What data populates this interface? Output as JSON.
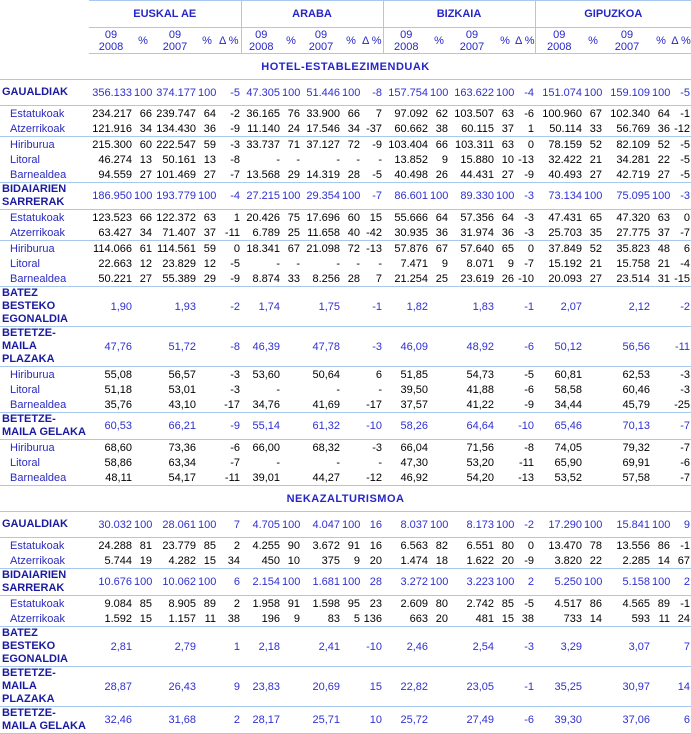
{
  "header": {
    "groups": [
      "EUSKAL AE",
      "ARABA",
      "BIZKAIA",
      "GIPUZKOA"
    ],
    "cols": [
      "09 2008",
      "%",
      "09 2007",
      "%",
      "Δ %"
    ]
  },
  "sections": [
    {
      "title": "HOTEL-ESTABLEZIMENDUAK",
      "rows": [
        {
          "type": "main",
          "label": "GAUALDIAK",
          "v": [
            "356.133",
            "100",
            "374.177",
            "100",
            "-5",
            "47.305",
            "100",
            "51.446",
            "100",
            "-8",
            "157.754",
            "100",
            "163.622",
            "100",
            "-4",
            "151.074",
            "100",
            "159.109",
            "100",
            "-5"
          ]
        },
        {
          "type": "sub",
          "label": "Estatukoak",
          "v": [
            "234.217",
            "66",
            "239.747",
            "64",
            "-2",
            "36.165",
            "76",
            "33.900",
            "66",
            "7",
            "97.092",
            "62",
            "103.507",
            "63",
            "-6",
            "100.960",
            "67",
            "102.340",
            "64",
            "-1"
          ]
        },
        {
          "type": "sub",
          "sep": true,
          "label": "Atzerrikoak",
          "v": [
            "121.916",
            "34",
            "134.430",
            "36",
            "-9",
            "11.140",
            "24",
            "17.546",
            "34",
            "-37",
            "60.662",
            "38",
            "60.115",
            "37",
            "1",
            "50.114",
            "33",
            "56.769",
            "36",
            "-12"
          ]
        },
        {
          "type": "sub",
          "label": "Hiriburua",
          "v": [
            "215.300",
            "60",
            "222.547",
            "59",
            "-3",
            "33.737",
            "71",
            "37.127",
            "72",
            "-9",
            "103.404",
            "66",
            "103.311",
            "63",
            "0",
            "78.159",
            "52",
            "82.109",
            "52",
            "-5"
          ]
        },
        {
          "type": "sub",
          "label": "Litoral",
          "v": [
            "46.274",
            "13",
            "50.161",
            "13",
            "-8",
            "-",
            "-",
            "-",
            "-",
            "-",
            "13.852",
            "9",
            "15.880",
            "10",
            "-13",
            "32.422",
            "21",
            "34.281",
            "22",
            "-5"
          ]
        },
        {
          "type": "sub",
          "label": "Barnealdea",
          "v": [
            "94.559",
            "27",
            "101.469",
            "27",
            "-7",
            "13.568",
            "29",
            "14.319",
            "28",
            "-5",
            "40.498",
            "26",
            "44.431",
            "27",
            "-9",
            "40.493",
            "27",
            "42.719",
            "27",
            "-5"
          ]
        },
        {
          "type": "main",
          "label": "BIDAIARIEN SARRERAK",
          "v": [
            "186.950",
            "100",
            "193.779",
            "100",
            "-4",
            "27.215",
            "100",
            "29.354",
            "100",
            "-7",
            "86.601",
            "100",
            "89.330",
            "100",
            "-3",
            "73.134",
            "100",
            "75.095",
            "100",
            "-3"
          ]
        },
        {
          "type": "sub",
          "label": "Estatukoak",
          "v": [
            "123.523",
            "66",
            "122.372",
            "63",
            "1",
            "20.426",
            "75",
            "17.696",
            "60",
            "15",
            "55.666",
            "64",
            "57.356",
            "64",
            "-3",
            "47.431",
            "65",
            "47.320",
            "63",
            "0"
          ]
        },
        {
          "type": "sub",
          "sep": true,
          "label": "Atzerrikoak",
          "v": [
            "63.427",
            "34",
            "71.407",
            "37",
            "-11",
            "6.789",
            "25",
            "11.658",
            "40",
            "-42",
            "30.935",
            "36",
            "31.974",
            "36",
            "-3",
            "25.703",
            "35",
            "27.775",
            "37",
            "-7"
          ]
        },
        {
          "type": "sub",
          "label": "Hiriburua",
          "v": [
            "114.066",
            "61",
            "114.561",
            "59",
            "0",
            "18.341",
            "67",
            "21.098",
            "72",
            "-13",
            "57.876",
            "67",
            "57.640",
            "65",
            "0",
            "37.849",
            "52",
            "35.823",
            "48",
            "6"
          ]
        },
        {
          "type": "sub",
          "label": "Litoral",
          "v": [
            "22.663",
            "12",
            "23.829",
            "12",
            "-5",
            "-",
            "-",
            "-",
            "-",
            "-",
            "7.471",
            "9",
            "8.071",
            "9",
            "-7",
            "15.192",
            "21",
            "15.758",
            "21",
            "-4"
          ]
        },
        {
          "type": "sub",
          "label": "Barnealdea",
          "v": [
            "50.221",
            "27",
            "55.389",
            "29",
            "-9",
            "8.874",
            "33",
            "8.256",
            "28",
            "7",
            "21.254",
            "25",
            "23.619",
            "26",
            "-10",
            "20.093",
            "27",
            "23.514",
            "31",
            "-15"
          ]
        },
        {
          "type": "avg",
          "label": "BATEZ BESTEKO EGONALDIA",
          "v": [
            "1,90",
            "",
            "1,93",
            "",
            "-2",
            "1,74",
            "",
            "1,75",
            "",
            "-1",
            "1,82",
            "",
            "1,83",
            "",
            "-1",
            "2,07",
            "",
            "2,12",
            "",
            "-2"
          ]
        },
        {
          "type": "main",
          "label": "BETETZE-MAILA PLAZAKA",
          "v": [
            "47,76",
            "",
            "51,72",
            "",
            "-8",
            "46,39",
            "",
            "47,78",
            "",
            "-3",
            "46,09",
            "",
            "48,92",
            "",
            "-6",
            "50,12",
            "",
            "56,56",
            "",
            "-11"
          ]
        },
        {
          "type": "sub",
          "label": "Hiriburua",
          "v": [
            "55,08",
            "",
            "56,57",
            "",
            "-3",
            "53,60",
            "",
            "50,64",
            "",
            "6",
            "51,85",
            "",
            "54,73",
            "",
            "-5",
            "60,81",
            "",
            "62,53",
            "",
            "-3"
          ]
        },
        {
          "type": "sub",
          "label": "Litoral",
          "v": [
            "51,18",
            "",
            "53,01",
            "",
            "-3",
            "-",
            "",
            "-",
            "",
            "-",
            "39,50",
            "",
            "41,88",
            "",
            "-6",
            "58,58",
            "",
            "60,46",
            "",
            "-3"
          ]
        },
        {
          "type": "sub",
          "label": "Barnealdea",
          "v": [
            "35,76",
            "",
            "43,10",
            "",
            "-17",
            "34,76",
            "",
            "41,69",
            "",
            "-17",
            "37,57",
            "",
            "41,22",
            "",
            "-9",
            "34,44",
            "",
            "45,79",
            "",
            "-25"
          ]
        },
        {
          "type": "main",
          "label": "BETETZE-MAILA GELAKA",
          "v": [
            "60,53",
            "",
            "66,21",
            "",
            "-9",
            "55,14",
            "",
            "61,32",
            "",
            "-10",
            "58,26",
            "",
            "64,64",
            "",
            "-10",
            "65,46",
            "",
            "70,13",
            "",
            "-7"
          ]
        },
        {
          "type": "sub",
          "label": "Hiriburua",
          "v": [
            "68,60",
            "",
            "73,36",
            "",
            "-6",
            "66,00",
            "",
            "68,32",
            "",
            "-3",
            "66,04",
            "",
            "71,56",
            "",
            "-8",
            "74,05",
            "",
            "79,32",
            "",
            "-7"
          ]
        },
        {
          "type": "sub",
          "label": "Litoral",
          "v": [
            "58,86",
            "",
            "63,34",
            "",
            "-7",
            "-",
            "",
            "-",
            "",
            "-",
            "47,30",
            "",
            "53,20",
            "",
            "-11",
            "65,90",
            "",
            "69,91",
            "",
            "-6"
          ]
        },
        {
          "type": "sub",
          "sep": true,
          "label": "Barnealdea",
          "v": [
            "48,11",
            "",
            "54,17",
            "",
            "-11",
            "39,01",
            "",
            "44,27",
            "",
            "-12",
            "46,92",
            "",
            "54,20",
            "",
            "-13",
            "53,52",
            "",
            "57,58",
            "",
            "-7"
          ]
        }
      ]
    },
    {
      "title": "NEKAZALTURISMOA",
      "rows": [
        {
          "type": "main",
          "label": "GAUALDIAK",
          "v": [
            "30.032",
            "100",
            "28.061",
            "100",
            "7",
            "4.705",
            "100",
            "4.047",
            "100",
            "16",
            "8.037",
            "100",
            "8.173",
            "100",
            "-2",
            "17.290",
            "100",
            "15.841",
            "100",
            "9"
          ]
        },
        {
          "type": "sub",
          "label": "Estatukoak",
          "v": [
            "24.288",
            "81",
            "23.779",
            "85",
            "2",
            "4.255",
            "90",
            "3.672",
            "91",
            "16",
            "6.563",
            "82",
            "6.551",
            "80",
            "0",
            "13.470",
            "78",
            "13.556",
            "86",
            "-1"
          ]
        },
        {
          "type": "sub",
          "sep": true,
          "label": "Atzerrikoak",
          "v": [
            "5.744",
            "19",
            "4.282",
            "15",
            "34",
            "450",
            "10",
            "375",
            "9",
            "20",
            "1.474",
            "18",
            "1.622",
            "20",
            "-9",
            "3.820",
            "22",
            "2.285",
            "14",
            "67"
          ]
        },
        {
          "type": "main",
          "label": "BIDAIARIEN SARRERAK",
          "v": [
            "10.676",
            "100",
            "10.062",
            "100",
            "6",
            "2.154",
            "100",
            "1.681",
            "100",
            "28",
            "3.272",
            "100",
            "3.223",
            "100",
            "2",
            "5.250",
            "100",
            "5.158",
            "100",
            "2"
          ]
        },
        {
          "type": "sub",
          "label": "Estatukoak",
          "v": [
            "9.084",
            "85",
            "8.905",
            "89",
            "2",
            "1.958",
            "91",
            "1.598",
            "95",
            "23",
            "2.609",
            "80",
            "2.742",
            "85",
            "-5",
            "4.517",
            "86",
            "4.565",
            "89",
            "-1"
          ]
        },
        {
          "type": "sub",
          "label": "Atzerrikoak",
          "v": [
            "1.592",
            "15",
            "1.157",
            "11",
            "38",
            "196",
            "9",
            "83",
            "5",
            "136",
            "663",
            "20",
            "481",
            "15",
            "38",
            "733",
            "14",
            "593",
            "11",
            "24"
          ]
        },
        {
          "type": "avg",
          "label": "BATEZ BESTEKO EGONALDIA",
          "v": [
            "2,81",
            "",
            "2,79",
            "",
            "1",
            "2,18",
            "",
            "2,41",
            "",
            "-10",
            "2,46",
            "",
            "2,54",
            "",
            "-3",
            "3,29",
            "",
            "3,07",
            "",
            "7"
          ]
        },
        {
          "type": "main",
          "label": "BETETZE-MAILA PLAZAKA",
          "v": [
            "28,87",
            "",
            "26,43",
            "",
            "9",
            "23,83",
            "",
            "20,69",
            "",
            "15",
            "22,82",
            "",
            "23,05",
            "",
            "-1",
            "35,25",
            "",
            "30,97",
            "",
            "14"
          ]
        },
        {
          "type": "main",
          "label": "BETETZE-MAILA GELAKA",
          "v": [
            "32,46",
            "",
            "31,68",
            "",
            "2",
            "28,17",
            "",
            "25,71",
            "",
            "10",
            "25,72",
            "",
            "27,49",
            "",
            "-6",
            "39,30",
            "",
            "37,06",
            "",
            "6"
          ]
        }
      ]
    }
  ]
}
